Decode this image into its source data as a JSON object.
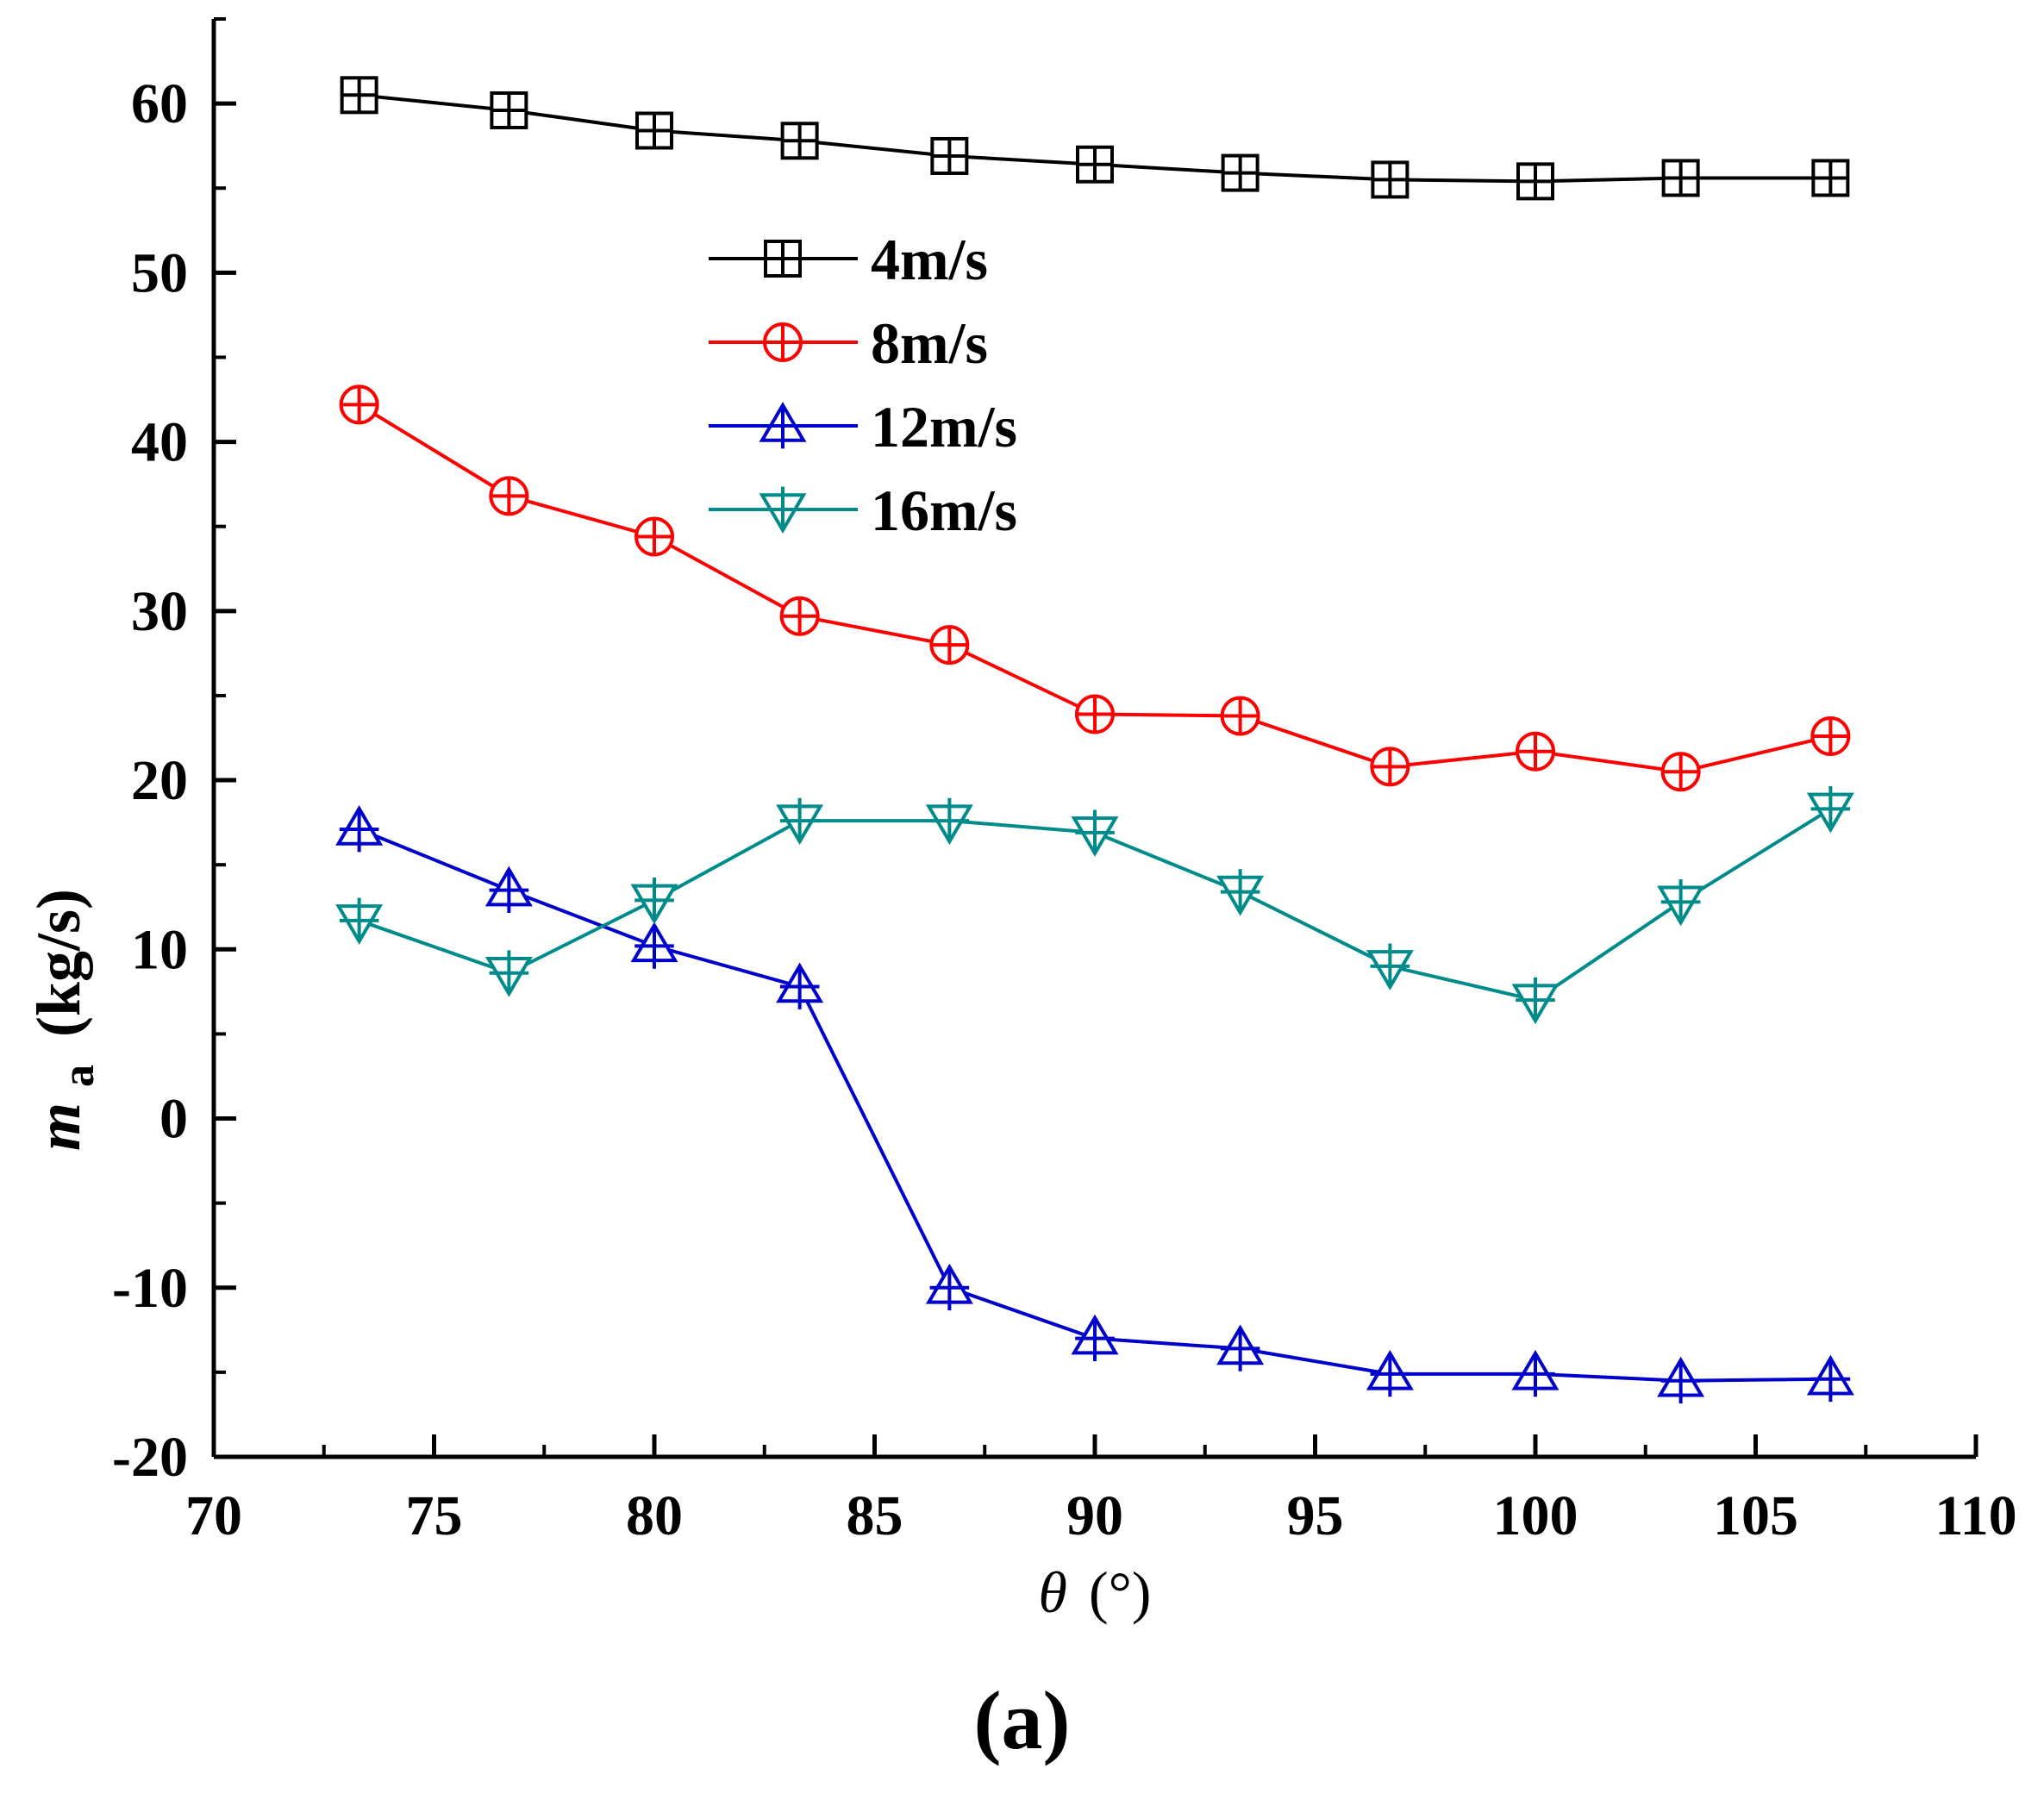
{
  "figure": {
    "panel_label": "(a)"
  },
  "chart_data": {
    "type": "line",
    "title": "",
    "xlabel": "θ (°)",
    "xlabel_symbol": "θ",
    "xlabel_unit": "(°)",
    "ylabel": "m_a (kg/s)",
    "ylabel_symbol": "m",
    "ylabel_subscript": "a",
    "ylabel_unit": "(kg/s)",
    "xlim": [
      70,
      110
    ],
    "ylim": [
      -20,
      65
    ],
    "xticks": [
      70,
      75,
      80,
      85,
      90,
      95,
      100,
      105,
      110
    ],
    "yticks": [
      -20,
      -10,
      0,
      10,
      20,
      30,
      40,
      50,
      60
    ],
    "xtick_labels": [
      "70",
      "75",
      "80",
      "85",
      "90",
      "95",
      "100",
      "105",
      "110"
    ],
    "ytick_labels": [
      "-20",
      "-10",
      "0",
      "10",
      "20",
      "30",
      "40",
      "50",
      "60"
    ],
    "grid": false,
    "legend_position": "upper-center",
    "x": [
      73.3,
      76.7,
      80.0,
      83.3,
      86.7,
      90.0,
      93.3,
      96.7,
      100.0,
      103.3,
      106.7
    ],
    "series": [
      {
        "name": "4m/s",
        "color": "#000000",
        "marker": "square-plus",
        "values": [
          60.5,
          59.6,
          58.4,
          57.8,
          56.9,
          56.4,
          55.9,
          55.5,
          55.4,
          55.6,
          55.6
        ]
      },
      {
        "name": "8m/s",
        "color": "#ff0000",
        "marker": "circle-plus",
        "values": [
          42.2,
          36.8,
          34.4,
          29.7,
          28.0,
          23.9,
          23.8,
          20.8,
          21.7,
          20.5,
          22.6
        ]
      },
      {
        "name": "12m/s",
        "color": "#0000cc",
        "marker": "triangle-up-plus",
        "values": [
          17.1,
          13.5,
          10.2,
          7.8,
          -10.0,
          -13.0,
          -13.6,
          -15.1,
          -15.1,
          -15.5,
          -15.4
        ]
      },
      {
        "name": "16m/s",
        "color": "#008b8b",
        "marker": "triangle-down-plus",
        "values": [
          11.7,
          8.6,
          12.9,
          17.6,
          17.6,
          16.9,
          13.4,
          9.0,
          7.0,
          12.8,
          18.3
        ]
      }
    ]
  }
}
